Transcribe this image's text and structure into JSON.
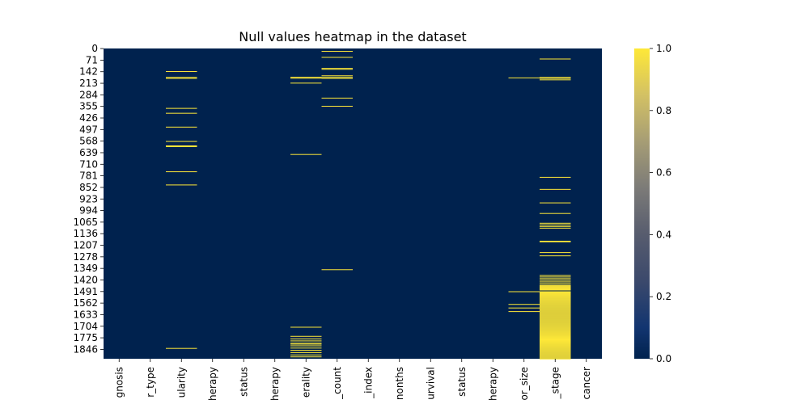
{
  "chart_data": {
    "type": "heatmap",
    "title": "Null values heatmap in the dataset",
    "xlabel": "",
    "ylabel": "",
    "n_rows": 1904,
    "columns": [
      "age_at_diagnosis",
      "tumor_type",
      "cellularity",
      "chemotherapy",
      "er_status",
      "hormone_therapy",
      "laterality",
      "node_count",
      "prognostic_index",
      "survival_months",
      "overall_survival",
      "pr_status",
      "radio_therapy",
      "tumor_size",
      "tumor_stage",
      "death_from_cancer"
    ],
    "x_tick_labels": [
      "gnosis",
      "r_type",
      "ularity",
      "herapy",
      "status",
      "herapy",
      "erality",
      "_count",
      "_index",
      "nonths",
      "urvival",
      "status",
      "herapy",
      "or_size",
      "_stage",
      "cancer"
    ],
    "y_tick_labels": [
      "0",
      "71",
      "142",
      "213",
      "284",
      "355",
      "426",
      "497",
      "568",
      "639",
      "710",
      "781",
      "852",
      "923",
      "994",
      "1065",
      "1136",
      "1207",
      "1278",
      "1349",
      "1420",
      "1491",
      "1562",
      "1633",
      "1704",
      "1775",
      "1846"
    ],
    "colorbar": {
      "min": 0.0,
      "max": 1.0,
      "ticks": [
        "0.0",
        "0.2",
        "0.4",
        "0.6",
        "0.8",
        "1.0"
      ],
      "colormap": "cividis",
      "color_low": "#00224e",
      "color_high": "#fee838"
    },
    "null_rows": {
      "cellularity": [
        139,
        175,
        181,
        365,
        395,
        480,
        568,
        595,
        600,
        754,
        835,
        1838
      ],
      "laterality": [
        174,
        180,
        210,
        648,
        1708,
        1764,
        1780,
        1792,
        1806,
        1812,
        1822,
        1836,
        1850,
        1864,
        1878,
        1890
      ],
      "node_count": [
        15,
        52,
        120,
        125,
        165,
        175,
        181,
        302,
        352,
        1355
      ],
      "tumor_size": [
        178,
        1490,
        1568,
        1590,
        1612
      ],
      "tumor_stage": [
        62,
        175,
        181,
        190,
        788,
        862,
        945,
        1010,
        1070,
        1080,
        1090,
        1100,
        1180,
        1184,
        1250,
        1270,
        1390,
        1400,
        1410,
        1420,
        1430,
        1440,
        1450,
        1455,
        1460,
        1465,
        1470,
        1475,
        1480,
        1490,
        1495,
        1500,
        1505,
        1510,
        1515,
        1520,
        1525,
        1530,
        1535,
        1540,
        1545,
        1550,
        1555,
        1560,
        1565,
        1570,
        1575,
        1580,
        1585,
        1590,
        1595,
        1600,
        1605,
        1610,
        1615,
        1620,
        1625,
        1630,
        1635,
        1640,
        1645,
        1650,
        1655,
        1660,
        1665,
        1670,
        1675,
        1680,
        1685,
        1690,
        1695,
        1700,
        1705,
        1710,
        1715,
        1720,
        1725,
        1730,
        1735,
        1740,
        1745,
        1750,
        1755,
        1760,
        1765,
        1770,
        1775,
        1780,
        1785,
        1790,
        1795,
        1800,
        1805,
        1810,
        1815,
        1820,
        1825,
        1830,
        1835,
        1840,
        1845,
        1850,
        1855,
        1860,
        1865,
        1870,
        1875,
        1880,
        1885,
        1890,
        1895,
        1900,
        1903
      ]
    }
  }
}
